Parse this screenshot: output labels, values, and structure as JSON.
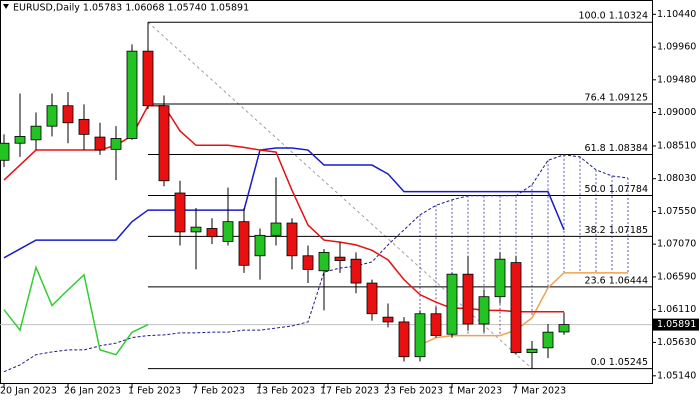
{
  "chart_data": {
    "type": "candlestick",
    "title": "EURUSD,Daily  1.05783 1.06068 1.05740 1.05891",
    "categories": [
      "20 Jan 2023",
      null,
      null,
      null,
      "26 Jan 2023",
      null,
      null,
      null,
      "1 Feb 2023",
      null,
      null,
      null,
      "7 Feb 2023",
      null,
      null,
      null,
      "13 Feb 2023",
      null,
      null,
      null,
      "17 Feb 2023",
      null,
      null,
      null,
      "23 Feb 2023",
      null,
      null,
      null,
      "1 Mar 2023",
      null,
      null,
      null,
      "7 Mar 2023",
      null,
      null,
      null,
      null,
      null,
      null,
      null
    ],
    "open": [
      1.083,
      1.0855,
      1.086,
      1.088,
      1.091,
      1.089,
      1.0864,
      1.0846,
      1.0862,
      1.099,
      1.091,
      1.0782,
      1.0725,
      1.073,
      1.0711,
      1.074,
      1.069,
      1.072,
      1.0738,
      1.069,
      1.0668,
      1.0688,
      1.0685,
      1.065,
      1.06,
      1.0593,
      1.0542,
      1.0605,
      1.0575,
      1.0663,
      1.059,
      1.063,
      1.068,
      1.0548,
      1.0555,
      1.05783,
      null,
      null,
      null,
      null
    ],
    "high": [
      1.0868,
      1.0928,
      1.09,
      1.0928,
      1.093,
      1.0912,
      1.0885,
      1.088,
      1.1,
      1.10324,
      1.0925,
      1.08,
      1.076,
      1.0745,
      1.079,
      1.076,
      1.073,
      1.0805,
      1.0745,
      1.0705,
      1.07,
      1.071,
      1.0695,
      1.0655,
      1.062,
      1.06,
      1.061,
      1.0615,
      1.0665,
      1.069,
      1.064,
      1.0695,
      1.069,
      1.0565,
      1.059,
      1.06068,
      null,
      null,
      null,
      null
    ],
    "low": [
      1.082,
      1.0835,
      1.0845,
      1.0865,
      1.0855,
      1.0845,
      1.0838,
      1.0801,
      1.086,
      1.0905,
      1.0792,
      1.0705,
      1.067,
      1.0707,
      1.0705,
      1.0665,
      1.0655,
      1.0705,
      1.067,
      1.065,
      1.061,
      1.0665,
      1.0635,
      1.0595,
      1.0585,
      1.0535,
      1.0535,
      1.057,
      1.057,
      1.058,
      1.0578,
      1.062,
      1.0545,
      1.05245,
      1.054,
      1.0574,
      null,
      null,
      null,
      null
    ],
    "close": [
      1.0855,
      1.0865,
      1.088,
      1.091,
      1.0885,
      1.0868,
      1.0845,
      1.0862,
      1.099,
      1.091,
      1.08,
      1.0725,
      1.0732,
      1.0718,
      1.074,
      1.0676,
      1.072,
      1.0738,
      1.069,
      1.067,
      1.0695,
      1.0683,
      1.065,
      1.0605,
      1.0593,
      1.0542,
      1.0605,
      1.0573,
      1.0663,
      1.059,
      1.063,
      1.0685,
      1.0548,
      1.0553,
      1.0578,
      1.05891,
      null,
      null,
      null,
      null
    ],
    "up_color": "#22c322",
    "down_color": "#e81010",
    "series": [
      {
        "color": "#f0a050",
        "style": "solid",
        "values": [
          null,
          null,
          null,
          null,
          null,
          null,
          null,
          null,
          null,
          null,
          null,
          null,
          null,
          null,
          null,
          null,
          null,
          null,
          null,
          null,
          null,
          null,
          null,
          null,
          null,
          null,
          1.0559,
          1.057,
          1.0573,
          1.0573,
          1.0573,
          1.0573,
          1.0581,
          1.0599,
          1.0643,
          1.0665,
          1.0665,
          1.0665,
          1.0665,
          1.0665
        ]
      },
      {
        "color": "#1a1a8c",
        "style": "dashed",
        "values": [
          1.052,
          1.053,
          1.0545,
          1.0549,
          1.0552,
          1.0552,
          1.0558,
          1.0562,
          1.057,
          1.0573,
          1.0574,
          1.0577,
          1.0577,
          1.0578,
          1.0578,
          1.0581,
          1.0581,
          1.0584,
          1.0587,
          1.0593,
          1.0666,
          1.0672,
          1.0675,
          1.0681,
          1.0706,
          1.0728,
          1.075,
          1.0764,
          1.0772,
          1.0778,
          1.0778,
          1.0778,
          1.0778,
          1.0794,
          1.083,
          1.0838,
          1.0835,
          1.0816,
          1.0807,
          1.0804
        ]
      },
      {
        "color": "#33cc33",
        "style": "solid",
        "values": [
          1.0611,
          1.0581,
          1.0673,
          1.0617,
          1.064,
          1.0662,
          1.0552,
          1.0545,
          1.0578,
          1.0589,
          null,
          null,
          null,
          null,
          null,
          null,
          null,
          null,
          null,
          null,
          null,
          null,
          null,
          null,
          null,
          null,
          null,
          null,
          null,
          null,
          null,
          null,
          null,
          null,
          null,
          null,
          null,
          null,
          null,
          null
        ]
      },
      {
        "color": "#1a1acc",
        "style": "solid",
        "values": [
          1.0687,
          1.07,
          1.0713,
          1.0713,
          1.0713,
          1.0713,
          1.0713,
          1.0713,
          1.074,
          1.0757,
          1.0757,
          1.0757,
          1.0757,
          1.0757,
          1.0757,
          1.0757,
          1.0845,
          1.0848,
          1.0848,
          1.0845,
          1.0823,
          1.0823,
          1.0823,
          1.0823,
          1.081,
          1.0784,
          1.0784,
          1.0784,
          1.0784,
          1.0784,
          1.0784,
          1.0784,
          1.0784,
          1.0784,
          1.0784,
          1.0728,
          null,
          null,
          null,
          null
        ]
      },
      {
        "color": "#e81010",
        "style": "solid",
        "values": [
          1.0801,
          1.0823,
          1.0845,
          1.0845,
          1.0845,
          1.0845,
          1.0845,
          1.0852,
          1.0866,
          1.091,
          1.091,
          1.0873,
          1.0852,
          1.0852,
          1.0852,
          1.0849,
          1.0845,
          1.0842,
          1.0786,
          1.0735,
          1.0713,
          1.071,
          1.0706,
          1.0698,
          1.0684,
          1.0655,
          1.0633,
          1.0622,
          1.0613,
          1.0613,
          1.061,
          1.061,
          1.0608,
          1.0608,
          1.0608,
          1.0608,
          null,
          null,
          null,
          null
        ]
      }
    ],
    "fib_levels": [
      {
        "value": 1.10324,
        "label": "100.0 1.10324"
      },
      {
        "value": 1.09125,
        "label": "76.4 1.09125"
      },
      {
        "value": 1.08384,
        "label": "61.8 1.08384"
      },
      {
        "value": 1.07784,
        "label": "50.0 1.07784"
      },
      {
        "value": 1.07185,
        "label": "38.2 1.07185"
      },
      {
        "value": 1.06444,
        "label": "23.6 1.06444"
      },
      {
        "value": 1.05245,
        "label": "0.0 1.05245"
      }
    ],
    "last_price": {
      "value": 1.05891,
      "label": "1.05891"
    },
    "ylim": [
      1.0502,
      1.1065
    ],
    "yticks": [
      {
        "value": 1.1044,
        "label": "1.10440"
      },
      {
        "value": 1.0996,
        "label": "1.09960"
      },
      {
        "value": 1.0948,
        "label": "1.09480"
      },
      {
        "value": 1.09,
        "label": "1.09000"
      },
      {
        "value": 1.0851,
        "label": "1.08510"
      },
      {
        "value": 1.0803,
        "label": "1.08030"
      },
      {
        "value": 1.0755,
        "label": "1.07550"
      },
      {
        "value": 1.0707,
        "label": "1.07070"
      },
      {
        "value": 1.0659,
        "label": "1.06590"
      },
      {
        "value": 1.0611,
        "label": "1.06110"
      },
      {
        "value": 1.0563,
        "label": "1.05630"
      },
      {
        "value": 1.0514,
        "label": "1.05140"
      }
    ]
  }
}
